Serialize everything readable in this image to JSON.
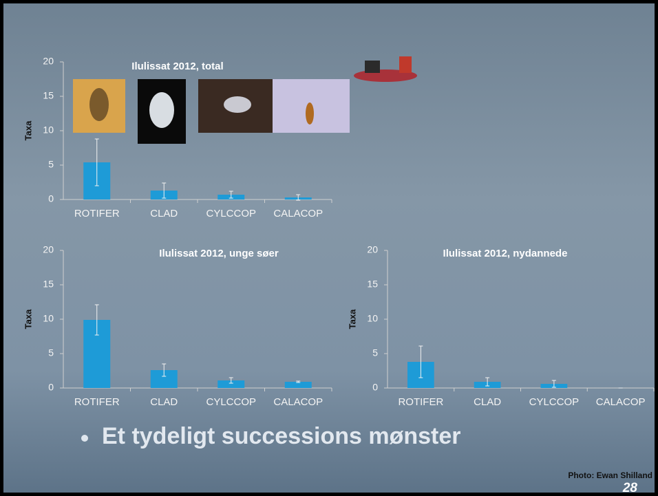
{
  "chart_data": [
    {
      "type": "bar",
      "title": "Ilulissat 2012, total",
      "y_label": "Taxa",
      "categories": [
        "ROTIFER",
        "CLAD",
        "CYLCCOP",
        "CALACOP"
      ],
      "values": [
        5.4,
        1.3,
        0.7,
        0.3
      ],
      "errors": [
        3.4,
        1.1,
        0.5,
        0.4
      ],
      "color": "#1e9bd7",
      "ylim": [
        0,
        20
      ],
      "yticks": [
        0,
        5,
        10,
        15,
        20
      ],
      "grid": false
    },
    {
      "type": "bar",
      "title": "Ilulissat 2012, unge søer",
      "y_label": "Taxa",
      "categories": [
        "ROTIFER",
        "CLAD",
        "CYLCCOP",
        "CALACOP"
      ],
      "values": [
        9.9,
        2.6,
        1.1,
        0.9
      ],
      "errors": [
        2.2,
        0.9,
        0.4,
        0.1
      ],
      "color": "#1e9bd7",
      "ylim": [
        0,
        20
      ],
      "yticks": [
        0,
        5,
        10,
        15,
        20
      ],
      "grid": false
    },
    {
      "type": "bar",
      "title": "Ilulissat 2012, nydannede",
      "y_label": "Taxa",
      "categories": [
        "ROTIFER",
        "CLAD",
        "CYLCCOP",
        "CALACOP"
      ],
      "values": [
        3.8,
        0.9,
        0.6,
        0
      ],
      "errors": [
        2.3,
        0.6,
        0.5,
        0
      ],
      "color": "#1e9bd7",
      "ylim": [
        0,
        20
      ],
      "yticks": [
        0,
        5,
        10,
        15,
        20
      ],
      "grid": false
    }
  ],
  "slide": {
    "bullet": "Et tydeligt successions mønster",
    "credit": "Photo: Ewan Shilland",
    "page_number": "28"
  }
}
